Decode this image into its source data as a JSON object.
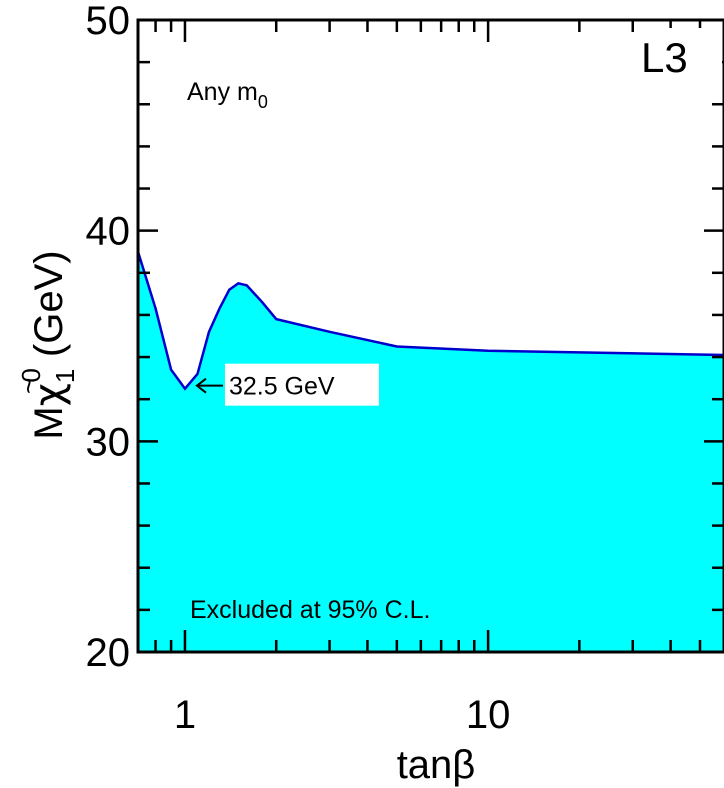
{
  "chart_data": {
    "type": "area",
    "title": "",
    "experiment_label": "L3",
    "xlabel": "tanβ",
    "ylabel": {
      "base": "M",
      "tilde": "~",
      "symbol": "χ",
      "superscript": "0",
      "subscript": "1",
      "unit": " (GeV)"
    },
    "x_scale": "log",
    "xlim": [
      0.7,
      60
    ],
    "ylim": [
      20,
      50
    ],
    "x_ticks": [
      {
        "value": 1,
        "label": "1"
      },
      {
        "value": 10,
        "label": "10"
      }
    ],
    "y_ticks": [
      {
        "value": 20,
        "label": "20"
      },
      {
        "value": 30,
        "label": "30"
      },
      {
        "value": 40,
        "label": "40"
      },
      {
        "value": 50,
        "label": "50"
      }
    ],
    "grid": false,
    "fill_color": "#00ffff",
    "line_color": "#0000cc",
    "series": [
      {
        "name": "",
        "x": [
          0.7,
          0.8,
          0.9,
          1.0,
          1.1,
          1.2,
          1.3,
          1.4,
          1.5,
          1.6,
          1.8,
          2.0,
          3.0,
          5.0,
          10.0,
          60.0
        ],
        "y": [
          39.0,
          36.3,
          33.4,
          32.5,
          33.2,
          35.2,
          36.3,
          37.2,
          37.5,
          37.4,
          36.6,
          35.8,
          35.2,
          34.5,
          34.3,
          34.1
        ]
      }
    ],
    "annotations": {
      "any_m0": {
        "text": "Any m",
        "sub": "0"
      },
      "minimum": {
        "text": "32.5 GeV",
        "x": 1.0,
        "y": 32.5
      },
      "excluded": {
        "text": "Excluded at 95% C.L."
      }
    }
  }
}
